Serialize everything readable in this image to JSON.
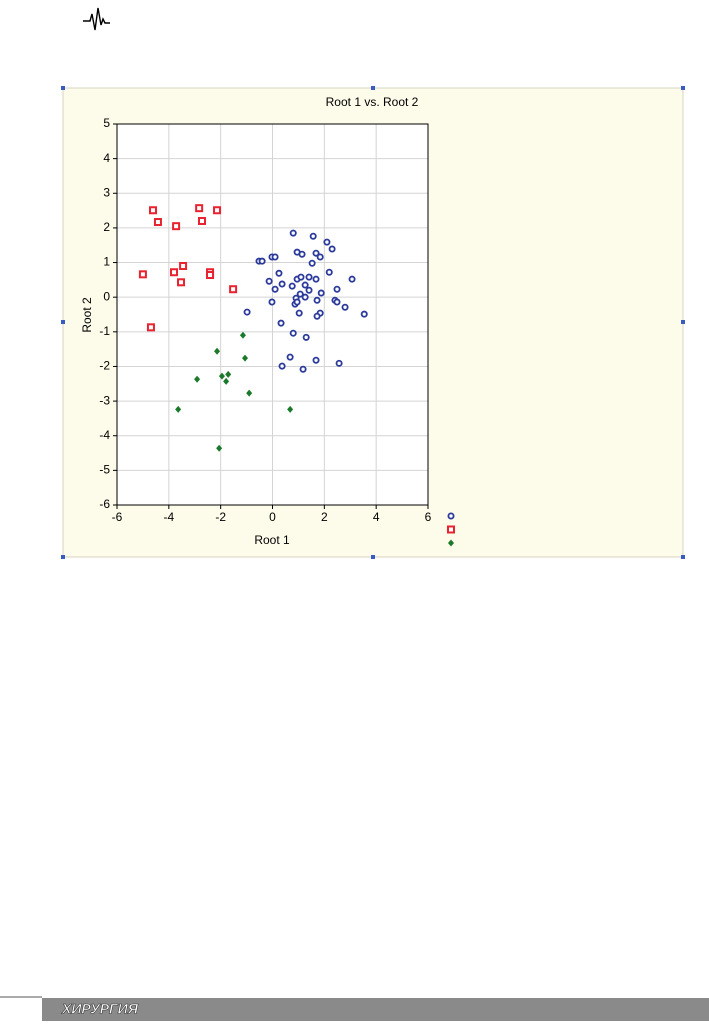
{
  "chart_data": {
    "type": "scatter",
    "title": "Root 1 vs. Root 2",
    "x_label": "Root 1",
    "y_label": "Root 2",
    "xlim": [
      -6,
      6
    ],
    "ylim": [
      -6,
      5
    ],
    "xticks": [
      -6,
      -4,
      -2,
      0,
      2,
      4,
      6
    ],
    "yticks": [
      -6,
      -5,
      -4,
      -3,
      -2,
      -1,
      0,
      1,
      2,
      3,
      4,
      5
    ],
    "grid": true,
    "series": [
      {
        "color": "#2b3a9a",
        "marker": "circle",
        "x": [
          -0.52,
          -0.4,
          -0.02,
          0.1,
          0.8,
          1.57,
          2.1,
          2.3,
          0.95,
          1.14,
          1.68,
          1.84,
          1.53,
          2.19,
          3.07,
          0.25,
          -0.13,
          0.37,
          0.95,
          1.1,
          1.41,
          1.68,
          1.26,
          0.76,
          0.1,
          1.41,
          1.88,
          1.07,
          0.91,
          1.26,
          2.49,
          2.41,
          2.49,
          1.72,
          0.87,
          0.95,
          -0.02,
          2.8,
          1.84,
          1.72,
          1.03,
          -0.98,
          3.54,
          0.33,
          0.8,
          1.3,
          0.68,
          1.68,
          2.57,
          0.37,
          1.18
        ],
        "values": [
          1.04,
          1.04,
          1.16,
          1.16,
          1.85,
          1.76,
          1.59,
          1.39,
          1.3,
          1.24,
          1.27,
          1.16,
          0.98,
          0.72,
          0.52,
          0.69,
          0.46,
          0.38,
          0.52,
          0.58,
          0.58,
          0.52,
          0.35,
          0.32,
          0.23,
          0.2,
          0.12,
          0.09,
          -0.03,
          0,
          0.23,
          -0.09,
          -0.14,
          -0.09,
          -0.2,
          -0.14,
          -0.14,
          -0.29,
          -0.46,
          -0.55,
          -0.46,
          -0.43,
          -0.49,
          -0.75,
          -1.04,
          -1.16,
          -1.73,
          -1.82,
          -1.91,
          -1.99,
          -2.08
        ]
      },
      {
        "color": "#e8222e",
        "marker": "square",
        "x": [
          -4.61,
          -4.42,
          -2.83,
          -2.14,
          -3.72,
          -2.72,
          -3.45,
          -3.8,
          -3.53,
          -2.41,
          -2.41,
          -5.0,
          -1.52,
          -4.69
        ],
        "values": [
          2.51,
          2.17,
          2.57,
          2.51,
          2.05,
          2.2,
          0.9,
          0.72,
          0.43,
          0.72,
          0.64,
          0.66,
          0.23,
          -0.87
        ]
      },
      {
        "color": "#1a7a2a",
        "marker": "diamond",
        "x": [
          -1.14,
          -2.14,
          -1.06,
          -2.91,
          -1.95,
          -1.71,
          -1.79,
          -0.9,
          -3.64,
          0.68,
          -2.06
        ],
        "values": [
          -1.1,
          -1.56,
          -1.76,
          -2.37,
          -2.28,
          -2.23,
          -2.43,
          -2.77,
          -3.24,
          -3.24,
          -4.36
        ]
      }
    ]
  },
  "footer": "ХИРУРГИЯ"
}
